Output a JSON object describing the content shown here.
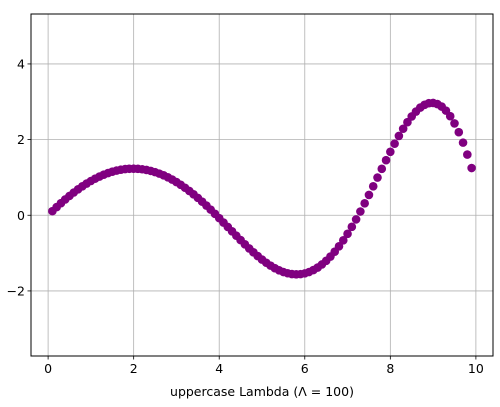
{
  "chart_data": {
    "type": "scatter",
    "title": "",
    "xlabel": "uppercase Lambda (Λ = 100)",
    "ylabel": "",
    "xlim": [
      -0.4,
      10.4
    ],
    "ylim": [
      -3.72,
      5.32
    ],
    "xticks": [
      0,
      2,
      4,
      6,
      8,
      10
    ],
    "yticks": [
      -2,
      0,
      2,
      4
    ],
    "xtick_labels": [
      "0",
      "2",
      "4",
      "6",
      "8",
      "10"
    ],
    "ytick_labels": [
      "−2",
      "0",
      "2",
      "4"
    ],
    "grid": true,
    "marker_color": "#800080",
    "series": [
      {
        "x_start": 0.1,
        "x_step": 0.1,
        "x_end": 9.9,
        "y": [
          0.109,
          0.216,
          0.319,
          0.418,
          0.512,
          0.602,
          0.686,
          0.765,
          0.839,
          0.906,
          0.968,
          1.023,
          1.072,
          1.115,
          1.151,
          1.181,
          1.204,
          1.22,
          1.229,
          1.232,
          1.228,
          1.216,
          1.198,
          1.173,
          1.14,
          1.101,
          1.055,
          1.003,
          0.943,
          0.877,
          0.805,
          0.727,
          0.643,
          0.554,
          0.46,
          0.36,
          0.257,
          0.149,
          0.038,
          -0.076,
          -0.192,
          -0.308,
          -0.425,
          -0.541,
          -0.656,
          -0.768,
          -0.876,
          -0.98,
          -1.079,
          -1.171,
          -1.255,
          -1.331,
          -1.398,
          -1.454,
          -1.5,
          -1.533,
          -1.554,
          -1.562,
          -1.556,
          -1.536,
          -1.5,
          -1.449,
          -1.383,
          -1.301,
          -1.204,
          -1.091,
          -0.963,
          -0.82,
          -0.662,
          -0.491,
          -0.306,
          -0.109,
          0.099,
          0.315,
          0.538,
          0.766,
          0.997,
          1.227,
          1.455,
          1.678,
          1.893,
          2.097,
          2.287,
          2.46,
          2.613,
          2.742,
          2.846,
          2.92,
          2.962,
          2.969,
          2.94,
          2.873,
          2.766,
          2.618,
          2.428,
          2.195,
          1.92,
          1.604,
          1.249
        ]
      }
    ]
  }
}
